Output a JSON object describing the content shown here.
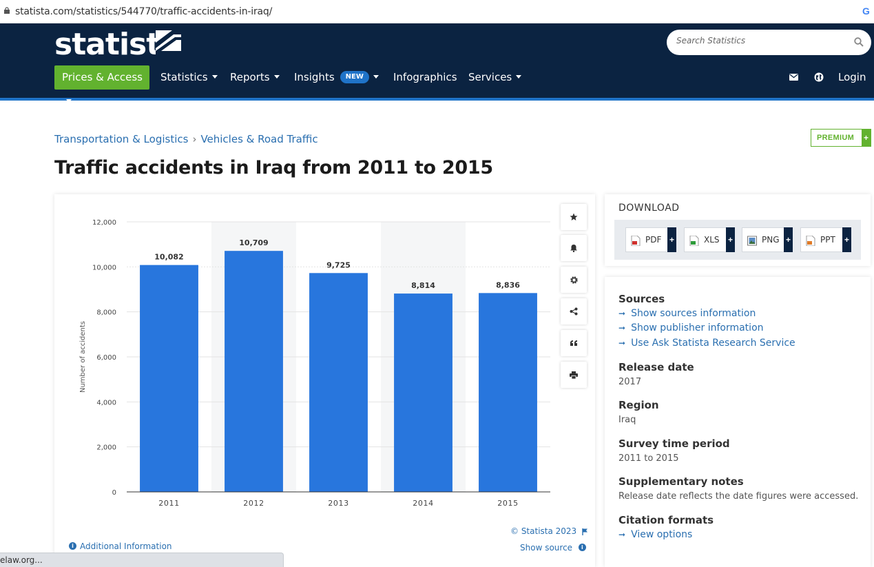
{
  "browser": {
    "url": "statista.com/statistics/544770/traffic-accidents-in-iraq/",
    "status_text": "elaw.org..."
  },
  "header": {
    "logo_text": "statista",
    "search_placeholder": "Search Statistics",
    "nav": [
      {
        "label": "Prices & Access",
        "has_caret": true
      },
      {
        "label": "Statistics",
        "has_caret": true
      },
      {
        "label": "Reports",
        "has_caret": true
      },
      {
        "label": "Insights",
        "badge": "NEW",
        "has_caret": true
      },
      {
        "label": "Infographics",
        "has_caret": false
      },
      {
        "label": "Services",
        "has_caret": true
      }
    ],
    "login_label": "Login"
  },
  "breadcrumb": {
    "first": "Transportation & Logistics",
    "separator": "›",
    "second": "Vehicles & Road Traffic"
  },
  "premium_label": "PREMIUM",
  "page_title": "Traffic accidents in Iraq from 2011 to 2015",
  "chart_data": {
    "type": "bar",
    "title": "",
    "xlabel": "",
    "ylabel": "Number of accidents",
    "categories": [
      "2011",
      "2012",
      "2013",
      "2014",
      "2015"
    ],
    "values": [
      10082,
      10709,
      9725,
      8814,
      8836
    ],
    "value_labels": [
      "10,082",
      "10,709",
      "9,725",
      "8,814",
      "8,836"
    ],
    "ylim": [
      0,
      12000
    ],
    "yticks": [
      0,
      2000,
      4000,
      6000,
      8000,
      10000,
      12000
    ],
    "ytick_labels": [
      "0",
      "2,000",
      "4,000",
      "6,000",
      "8,000",
      "10,000",
      "12,000"
    ],
    "bar_color": "#2876dd",
    "grid": true
  },
  "chart_footer": {
    "copyright": "© Statista 2023",
    "show_source": "Show source",
    "additional_info": "Additional Information"
  },
  "download": {
    "title": "DOWNLOAD",
    "buttons": [
      {
        "label": "PDF",
        "icon": "pdf-file-icon"
      },
      {
        "label": "XLS",
        "icon": "xls-file-icon"
      },
      {
        "label": "PNG",
        "icon": "png-file-icon"
      },
      {
        "label": "PPT",
        "icon": "ppt-file-icon"
      }
    ]
  },
  "info": {
    "sources_title": "Sources",
    "sources_links": [
      "Show sources information",
      "Show publisher information",
      "Use Ask Statista Research Service"
    ],
    "release_title": "Release date",
    "release_value": "2017",
    "region_title": "Region",
    "region_value": "Iraq",
    "survey_title": "Survey time period",
    "survey_value": "2011 to 2015",
    "notes_title": "Supplementary notes",
    "notes_value": "Release date reflects the date figures were accessed.",
    "citation_title": "Citation formats",
    "citation_link": "View options"
  },
  "colors": {
    "header_bg": "#0b2341",
    "accent_green": "#62b22f",
    "accent_blue": "#1f73c8",
    "link": "#2a6fb0"
  }
}
